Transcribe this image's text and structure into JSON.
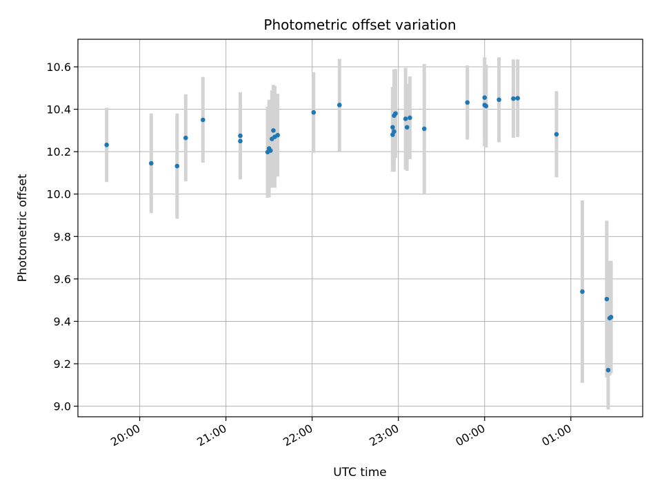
{
  "chart_data": {
    "type": "scatter",
    "title": "Photometric offset variation",
    "xlabel": "UTC time",
    "ylabel": "Photometric offset",
    "x_axis_kind": "time",
    "xlim": [
      "19:17",
      "01:50"
    ],
    "ylim": [
      8.95,
      10.73
    ],
    "grid": true,
    "x_ticks": [
      "20:00",
      "21:00",
      "22:00",
      "23:00",
      "00:00",
      "01:00"
    ],
    "y_ticks": [
      9.0,
      9.2,
      9.4,
      9.6,
      9.8,
      10.0,
      10.2,
      10.4,
      10.6
    ],
    "y_tick_labels": [
      "9.0",
      "9.2",
      "9.4",
      "9.6",
      "9.8",
      "10.0",
      "10.2",
      "10.4",
      "10.6"
    ],
    "colors": {
      "point": "#1f77b4",
      "errorbar": "#d3d3d3",
      "grid": "#b0b0b0"
    },
    "points": [
      {
        "x": "19:37",
        "y": 10.232,
        "err": 0.175
      },
      {
        "x": "20:08",
        "y": 10.145,
        "err": 0.235
      },
      {
        "x": "20:26",
        "y": 10.132,
        "err": 0.248
      },
      {
        "x": "20:32",
        "y": 10.265,
        "err": 0.205
      },
      {
        "x": "20:44",
        "y": 10.35,
        "err": 0.202
      },
      {
        "x": "21:10",
        "y": 10.25,
        "err": 0.18
      },
      {
        "x": "21:10",
        "y": 10.275,
        "err": 0.205
      },
      {
        "x": "21:29",
        "y": 10.198,
        "err": 0.215
      },
      {
        "x": "21:30",
        "y": 10.215,
        "err": 0.23
      },
      {
        "x": "21:31",
        "y": 10.205,
        "err": 0.15
      },
      {
        "x": "21:32",
        "y": 10.26,
        "err": 0.23
      },
      {
        "x": "21:33",
        "y": 10.3,
        "err": 0.215
      },
      {
        "x": "21:34",
        "y": 10.27,
        "err": 0.24
      },
      {
        "x": "21:36",
        "y": 10.278,
        "err": 0.195
      },
      {
        "x": "22:01",
        "y": 10.385,
        "err": 0.19
      },
      {
        "x": "22:19",
        "y": 10.42,
        "err": 0.217
      },
      {
        "x": "22:56",
        "y": 10.28,
        "err": 0.175
      },
      {
        "x": "22:56",
        "y": 10.315,
        "err": 0.19
      },
      {
        "x": "22:57",
        "y": 10.295,
        "err": 0.19
      },
      {
        "x": "22:57",
        "y": 10.37,
        "err": 0.218
      },
      {
        "x": "22:58",
        "y": 10.38,
        "err": 0.21
      },
      {
        "x": "23:05",
        "y": 10.355,
        "err": 0.24
      },
      {
        "x": "23:06",
        "y": 10.315,
        "err": 0.205
      },
      {
        "x": "23:08",
        "y": 10.36,
        "err": 0.195
      },
      {
        "x": "23:18",
        "y": 10.308,
        "err": 0.305
      },
      {
        "x": "23:48",
        "y": 10.432,
        "err": 0.175
      },
      {
        "x": "00:00",
        "y": 10.42,
        "err": 0.195
      },
      {
        "x": "00:00",
        "y": 10.455,
        "err": 0.19
      },
      {
        "x": "00:01",
        "y": 10.415,
        "err": 0.195
      },
      {
        "x": "00:10",
        "y": 10.445,
        "err": 0.2
      },
      {
        "x": "00:20",
        "y": 10.45,
        "err": 0.185
      },
      {
        "x": "00:23",
        "y": 10.452,
        "err": 0.183
      },
      {
        "x": "00:50",
        "y": 10.282,
        "err": 0.203
      },
      {
        "x": "01:08",
        "y": 9.54,
        "err": 0.43
      },
      {
        "x": "01:25",
        "y": 9.505,
        "err": 0.37
      },
      {
        "x": "01:26",
        "y": 9.17,
        "err": 0.185
      },
      {
        "x": "01:27",
        "y": 9.415,
        "err": 0.27
      },
      {
        "x": "01:28",
        "y": 9.42,
        "err": 0.265
      }
    ]
  }
}
